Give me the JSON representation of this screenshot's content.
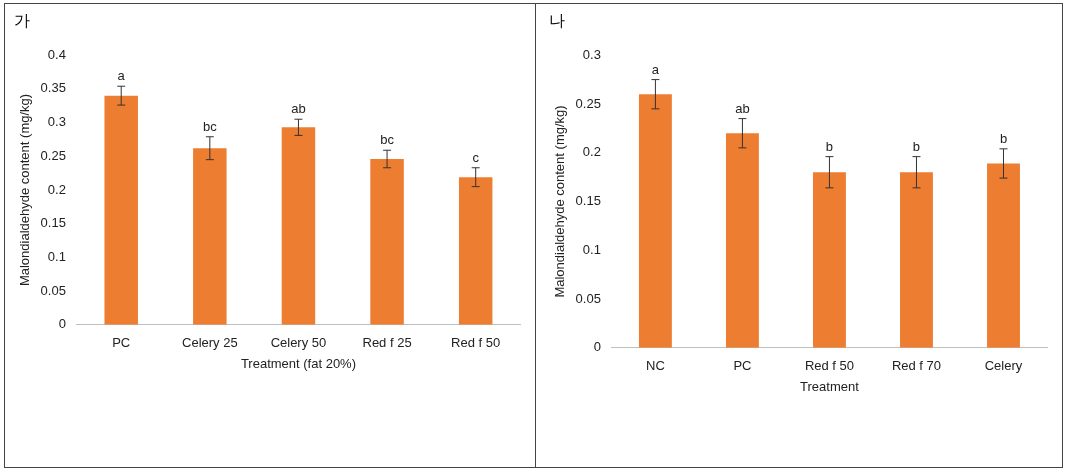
{
  "chart_data": [
    {
      "type": "bar",
      "title": "가",
      "x_label": "Treatment (fat 20%)",
      "y_label": "Malondialdehyde content (mg/kg)",
      "categories": [
        "PC",
        "Celery 25",
        "Celery 50",
        "Red f 25",
        "Red f 50"
      ],
      "values": [
        0.34,
        0.262,
        0.293,
        0.246,
        0.219
      ],
      "errors": [
        0.014,
        0.017,
        0.012,
        0.013,
        0.014
      ],
      "annotations": [
        "a",
        "bc",
        "ab",
        "bc",
        "c"
      ],
      "color": "#ed7d31",
      "ylim": [
        0,
        0.4
      ],
      "yticks": [
        0,
        0.05,
        0.1,
        0.15,
        0.2,
        0.25,
        0.3,
        0.35,
        0.4
      ],
      "grid": false
    },
    {
      "type": "bar",
      "title": "나",
      "x_label": "Treatment",
      "y_label": "Malondialdehyde content (mg/kg)",
      "categories": [
        "NC",
        "PC",
        "Red f 50",
        "Red f 70",
        "Celery"
      ],
      "values": [
        0.26,
        0.22,
        0.18,
        0.18,
        0.189
      ],
      "errors": [
        0.015,
        0.015,
        0.016,
        0.016,
        0.015
      ],
      "annotations": [
        "a",
        "ab",
        "b",
        "b",
        "b"
      ],
      "color": "#ed7d31",
      "ylim": [
        0,
        0.3
      ],
      "yticks": [
        0,
        0.05,
        0.1,
        0.15,
        0.2,
        0.25,
        0.3
      ],
      "grid": false
    }
  ]
}
